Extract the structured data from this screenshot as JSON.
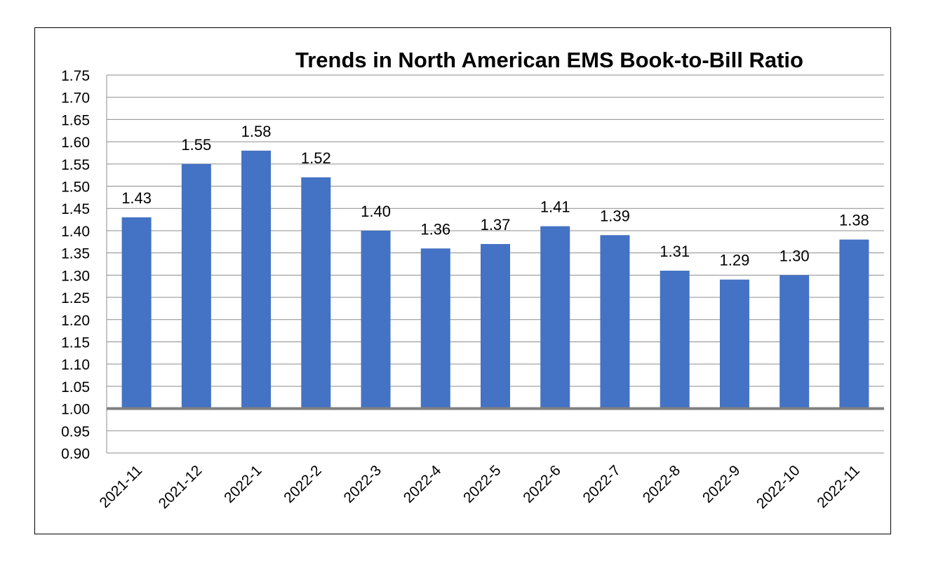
{
  "chart_data": {
    "type": "bar",
    "title": "Trends in North American EMS Book-to-Bill Ratio",
    "xlabel": "",
    "ylabel": "",
    "categories": [
      "2021-11",
      "2021-12",
      "2022-1",
      "2022-2",
      "2022-3",
      "2022-4",
      "2022-5",
      "2022-6",
      "2022-7",
      "2022-8",
      "2022-9",
      "2022-10",
      "2022-11"
    ],
    "values": [
      1.43,
      1.55,
      1.58,
      1.52,
      1.4,
      1.36,
      1.37,
      1.41,
      1.39,
      1.31,
      1.29,
      1.3,
      1.38
    ],
    "data_labels": [
      "1.43",
      "1.55",
      "1.58",
      "1.52",
      "1.40",
      "1.36",
      "1.37",
      "1.41",
      "1.39",
      "1.31",
      "1.29",
      "1.30",
      "1.38"
    ],
    "ylim": [
      0.9,
      1.75
    ],
    "ytick_labels": [
      "1.75",
      "1.70",
      "1.65",
      "1.60",
      "1.55",
      "1.50",
      "1.45",
      "1.40",
      "1.35",
      "1.30",
      "1.25",
      "1.20",
      "1.15",
      "1.10",
      "1.05",
      "1.00",
      "0.95",
      "0.90"
    ],
    "baseline": 1.0,
    "grid": true,
    "legend": "none",
    "colors": {
      "bar": "#4472C4",
      "grid": "#8C8C8C",
      "baseline": "#808080",
      "text": "#000000"
    }
  }
}
